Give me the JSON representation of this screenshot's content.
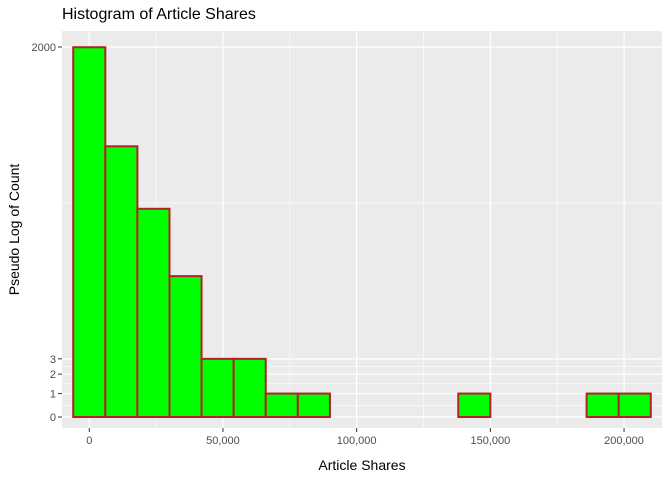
{
  "chart_data": {
    "type": "bar",
    "title": "Histogram of Article Shares",
    "xlabel": "Article Shares",
    "ylabel": "Pseudo Log of Count",
    "y_scale": "pseudo_log",
    "bin_width": 12000,
    "bins": [
      {
        "x_start": -6000,
        "x_end": 6000,
        "count": 1990
      },
      {
        "x_start": 6000,
        "x_end": 18000,
        "count": 260
      },
      {
        "x_start": 18000,
        "x_end": 30000,
        "count": 72
      },
      {
        "x_start": 30000,
        "x_end": 42000,
        "count": 18
      },
      {
        "x_start": 42000,
        "x_end": 54000,
        "count": 3
      },
      {
        "x_start": 54000,
        "x_end": 66000,
        "count": 3
      },
      {
        "x_start": 66000,
        "x_end": 78000,
        "count": 1
      },
      {
        "x_start": 78000,
        "x_end": 90000,
        "count": 1
      },
      {
        "x_start": 90000,
        "x_end": 102000,
        "count": 0
      },
      {
        "x_start": 102000,
        "x_end": 114000,
        "count": 0
      },
      {
        "x_start": 114000,
        "x_end": 126000,
        "count": 0
      },
      {
        "x_start": 126000,
        "x_end": 138000,
        "count": 0
      },
      {
        "x_start": 138000,
        "x_end": 150000,
        "count": 1
      },
      {
        "x_start": 150000,
        "x_end": 162000,
        "count": 0
      },
      {
        "x_start": 162000,
        "x_end": 174000,
        "count": 0
      },
      {
        "x_start": 174000,
        "x_end": 186000,
        "count": 0
      },
      {
        "x_start": 186000,
        "x_end": 198000,
        "count": 1
      },
      {
        "x_start": 198000,
        "x_end": 210000,
        "count": 1
      }
    ],
    "x_ticks": [
      {
        "value": 0,
        "label": "0"
      },
      {
        "value": 50000,
        "label": "50,000"
      },
      {
        "value": 100000,
        "label": "100,000"
      },
      {
        "value": 150000,
        "label": "150,000"
      },
      {
        "value": 200000,
        "label": "200,000"
      }
    ],
    "y_ticks": [
      {
        "value": 0,
        "label": "0"
      },
      {
        "value": 1,
        "label": "1"
      },
      {
        "value": 2,
        "label": "2"
      },
      {
        "value": 3,
        "label": "3"
      },
      {
        "value": 2000,
        "label": "2000"
      }
    ],
    "xlim": [
      -10200,
      214200
    ],
    "ylim": [
      0,
      2000
    ],
    "grid": true,
    "legend": "none",
    "colors": {
      "panel_background": "#EBEBEB",
      "grid_major": "#FFFFFF",
      "bar_fill": "#00FF00",
      "bar_outline": "#B22222"
    }
  }
}
